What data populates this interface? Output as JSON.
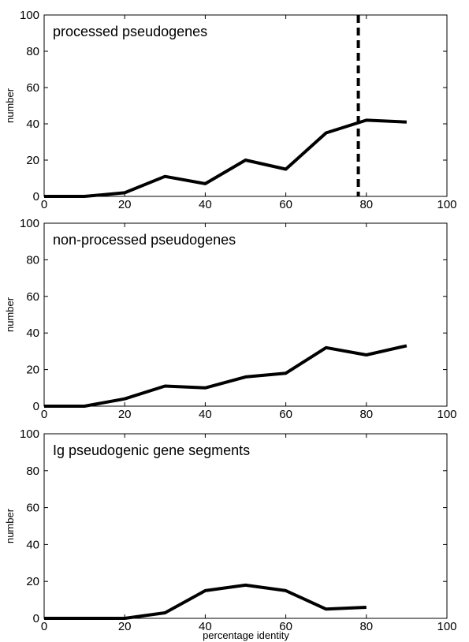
{
  "figure": {
    "shared_xlabel": "percentage identity"
  },
  "chart_data": [
    {
      "type": "line",
      "title": "processed pseudogenes",
      "ylabel": "number",
      "xlabel": "",
      "xlim": [
        0,
        100
      ],
      "ylim": [
        0,
        100
      ],
      "xticks": [
        0,
        20,
        40,
        60,
        80,
        100
      ],
      "yticks": [
        0,
        20,
        40,
        60,
        80,
        100
      ],
      "grid": false,
      "x": [
        0,
        10,
        20,
        30,
        40,
        50,
        60,
        70,
        80,
        90
      ],
      "series": [
        {
          "values": [
            0,
            0,
            2,
            11,
            7,
            20,
            15,
            35,
            42,
            41
          ]
        }
      ],
      "reference_line": {
        "orientation": "vertical",
        "x": 78,
        "style": "dashed"
      }
    },
    {
      "type": "line",
      "title": "non-processed pseudogenes",
      "ylabel": "number",
      "xlabel": "",
      "xlim": [
        0,
        100
      ],
      "ylim": [
        0,
        100
      ],
      "xticks": [
        0,
        20,
        40,
        60,
        80,
        100
      ],
      "yticks": [
        0,
        20,
        40,
        60,
        80,
        100
      ],
      "grid": false,
      "x": [
        0,
        10,
        20,
        30,
        40,
        50,
        60,
        70,
        80,
        90
      ],
      "series": [
        {
          "values": [
            0,
            0,
            4,
            11,
            10,
            16,
            18,
            32,
            28,
            33
          ]
        }
      ]
    },
    {
      "type": "line",
      "title": "Ig pseudogenic gene segments",
      "ylabel": "number",
      "xlabel": "percentage identity",
      "xlim": [
        0,
        100
      ],
      "ylim": [
        0,
        100
      ],
      "xticks": [
        0,
        20,
        40,
        60,
        80,
        100
      ],
      "yticks": [
        0,
        20,
        40,
        60,
        80,
        100
      ],
      "grid": false,
      "x": [
        0,
        10,
        20,
        30,
        40,
        50,
        60,
        70,
        80
      ],
      "series": [
        {
          "values": [
            0,
            0,
            0,
            3,
            15,
            18,
            15,
            5,
            6
          ]
        }
      ]
    }
  ]
}
